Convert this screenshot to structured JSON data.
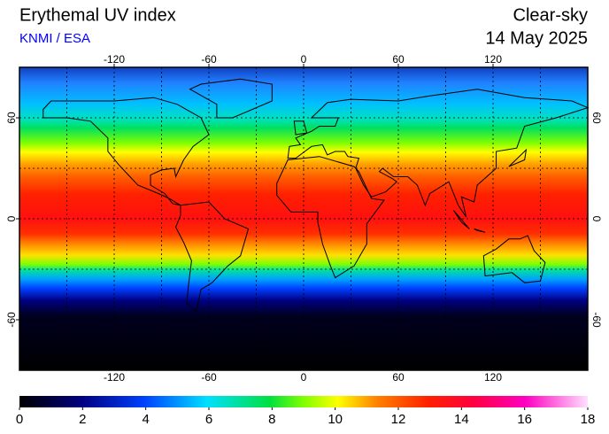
{
  "header": {
    "title": "Erythemal UV index",
    "source": "KNMI / ESA",
    "condition": "Clear-sky",
    "date": "14 May 2025"
  },
  "map": {
    "xlim": [
      -180,
      180
    ],
    "ylim": [
      -90,
      90
    ],
    "xticks": [
      -120,
      -60,
      0,
      60,
      120
    ],
    "yticks": [
      -60,
      0,
      60
    ],
    "x_gridlines": [
      -150,
      -120,
      -90,
      -60,
      -30,
      0,
      30,
      60,
      90,
      120,
      150
    ],
    "y_gridlines": [
      -60,
      -30,
      0,
      30,
      60
    ]
  },
  "colorbar": {
    "lim": [
      0,
      18
    ],
    "ticks": [
      0,
      2,
      4,
      6,
      8,
      10,
      12,
      14,
      16,
      18
    ]
  }
}
